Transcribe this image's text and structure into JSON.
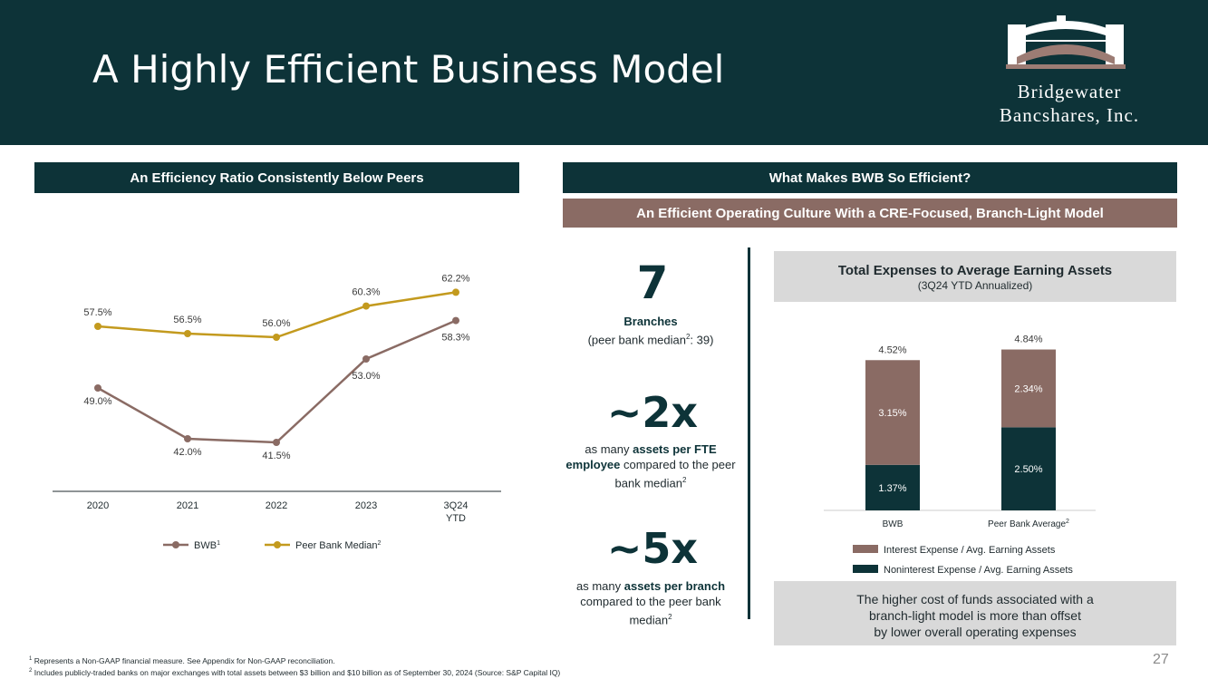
{
  "header": {
    "title": "A Highly Efficient Business Model",
    "logo_line1": "Bridgewater",
    "logo_line2": "Bancshares, Inc."
  },
  "left_section": {
    "heading": "An Efficiency Ratio Consistently Below Peers"
  },
  "right_section": {
    "heading": "What Makes BWB So Efficient?",
    "subheading": "An Efficient Operating Culture With a CRE-Focused, Branch-Light Model"
  },
  "stats": [
    {
      "value": "7",
      "label_bold": "Branches",
      "label_rest": "(peer bank median",
      "sup": "2",
      "label_end": ": 39)"
    },
    {
      "value": "~2x",
      "pre": "as many ",
      "bold": "assets per FTE employee",
      "post": " compared to the peer bank median",
      "sup": "2"
    },
    {
      "value": "~5x",
      "pre": "as many ",
      "bold": "assets per branch",
      "post": " compared to the peer bank median",
      "sup": "2"
    }
  ],
  "expense_box": {
    "title": "Total Expenses to Average Earning Assets",
    "subtitle": "(3Q24 YTD Annualized)"
  },
  "note_box": {
    "line1": "The higher cost of funds associated with a",
    "line2": "branch-light model is more than offset",
    "line3": "by lower overall operating expenses"
  },
  "footnotes": {
    "fn1": "Represents a Non-GAAP financial measure. See Appendix for Non-GAAP reconciliation.",
    "fn2": "Includes publicly-traded banks on major exchanges with total assets between $3 billion and $10 billion as of September 30, 2024 (Source: S&P Capital IQ)"
  },
  "page_number": "27",
  "colors": {
    "dark_teal": "#0d3338",
    "mauve": "#8a6b64",
    "gold": "#c39a1e",
    "brown": "#8a6b64"
  },
  "chart_data": [
    {
      "type": "line",
      "title": "An Efficiency Ratio Consistently Below Peers",
      "categories": [
        "2020",
        "2021",
        "2022",
        "2023",
        "3Q24 YTD"
      ],
      "category_lines": [
        [
          "2020"
        ],
        [
          "2021"
        ],
        [
          "2022"
        ],
        [
          "2023"
        ],
        [
          "3Q24",
          "YTD"
        ]
      ],
      "ylim": [
        35,
        70
      ],
      "series": [
        {
          "name": "BWB",
          "sup": "1",
          "color": "#8a6b64",
          "values": [
            49.0,
            42.0,
            41.5,
            53.0,
            58.3
          ],
          "labels": [
            "49.0%",
            "42.0%",
            "41.5%",
            "53.0%",
            "58.3%"
          ]
        },
        {
          "name": "Peer Bank Median",
          "sup": "2",
          "color": "#c39a1e",
          "values": [
            57.5,
            56.5,
            56.0,
            60.3,
            62.2
          ],
          "labels": [
            "57.5%",
            "56.5%",
            "56.0%",
            "60.3%",
            "62.2%"
          ]
        }
      ],
      "legend": "bottom"
    },
    {
      "type": "bar",
      "stacked": true,
      "title": "Total Expenses to Average Earning Assets",
      "categories": [
        "BWB",
        "Peer Bank Average"
      ],
      "category_sups": [
        "",
        "2"
      ],
      "totals": [
        4.52,
        4.84
      ],
      "total_labels": [
        "4.52%",
        "4.84%"
      ],
      "ylim": [
        0,
        5.4
      ],
      "series": [
        {
          "name": "Noninterest Expense / Avg. Earning Assets",
          "color": "#0d3338",
          "values": [
            1.37,
            2.5
          ],
          "labels": [
            "1.37%",
            "2.50%"
          ]
        },
        {
          "name": "Interest Expense / Avg. Earning Assets",
          "color": "#8a6b64",
          "values": [
            3.15,
            2.34
          ],
          "labels": [
            "3.15%",
            "2.34%"
          ]
        }
      ],
      "legend_order": [
        "Interest Expense / Avg. Earning Assets",
        "Noninterest Expense / Avg. Earning Assets"
      ],
      "legend": "bottom"
    }
  ]
}
